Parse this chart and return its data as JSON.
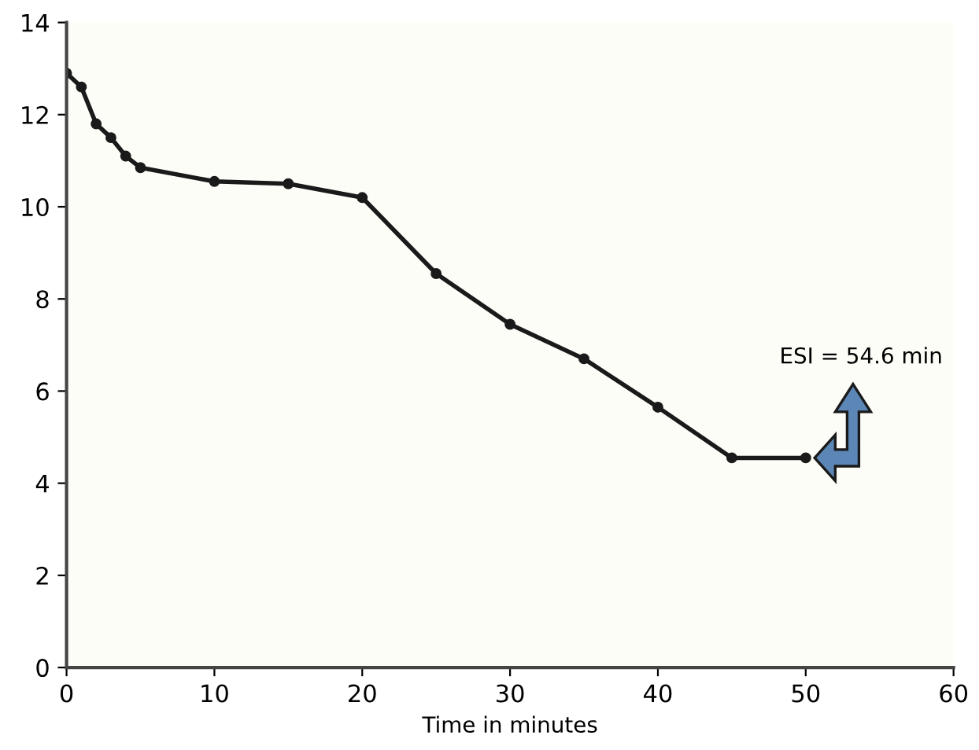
{
  "chart_data": {
    "type": "line",
    "xlabel": "Time in minutes",
    "x": [
      0,
      1,
      2,
      3,
      4,
      5,
      10,
      15,
      20,
      25,
      30,
      35,
      40,
      45,
      50
    ],
    "series": [
      {
        "color": "#1a1a1a",
        "values": [
          12.9,
          12.6,
          11.8,
          11.5,
          11.1,
          10.85,
          10.55,
          10.5,
          10.2,
          8.55,
          7.45,
          6.7,
          5.65,
          4.55,
          4.55
        ]
      }
    ],
    "xlim": [
      0,
      60
    ],
    "xticks": [
      0,
      10,
      20,
      30,
      40,
      50,
      60
    ],
    "ylim": [
      0,
      14
    ],
    "yticks": [
      0,
      2,
      4,
      6,
      8,
      10,
      12,
      14
    ],
    "marker": "circle",
    "line_style": "solid",
    "grid": false,
    "legend": false,
    "annotations": [
      "ESI = 54.6 min"
    ]
  }
}
